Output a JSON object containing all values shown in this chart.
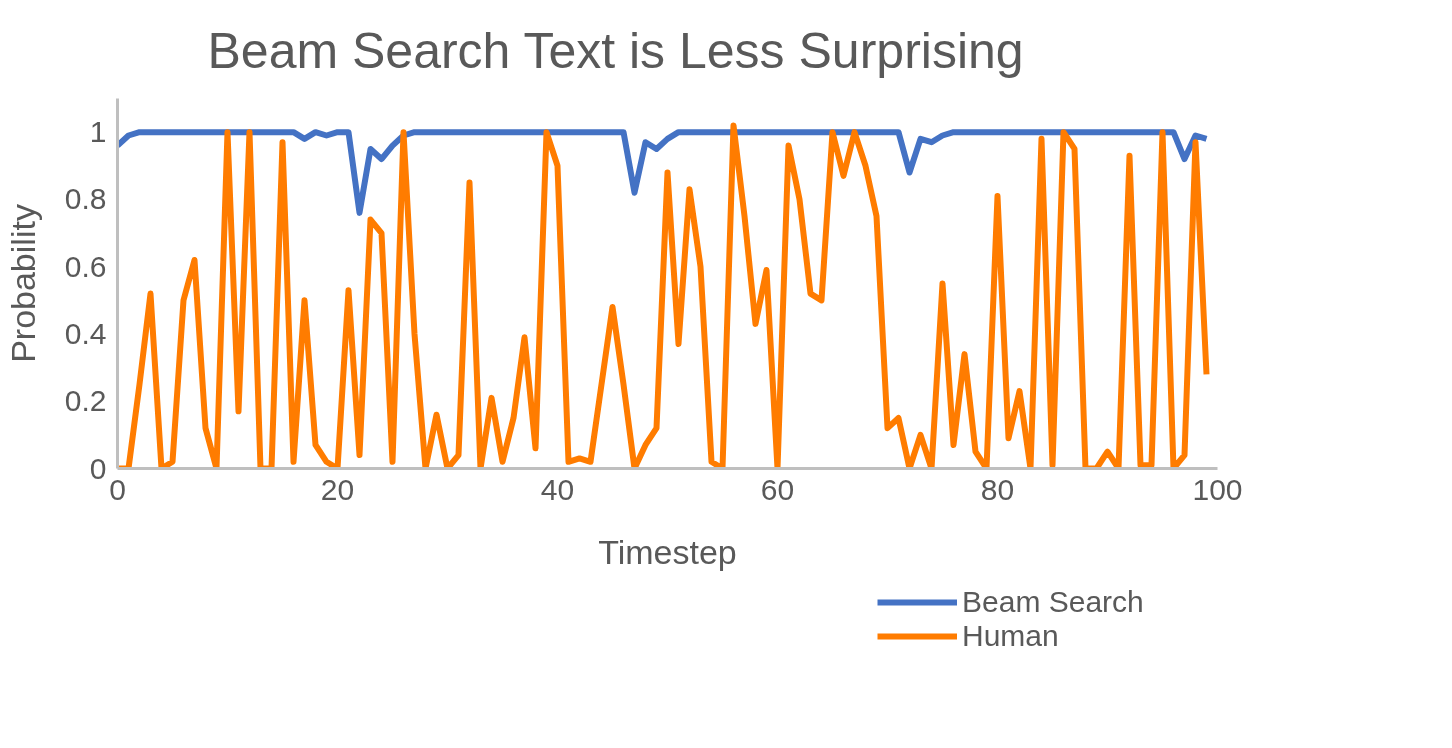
{
  "chart_data": {
    "type": "line",
    "title": "Beam Search Text is Less Surprising",
    "xlabel": "Timestep",
    "ylabel": "Probability",
    "x": [
      0,
      1,
      2,
      3,
      4,
      5,
      6,
      7,
      8,
      9,
      10,
      11,
      12,
      13,
      14,
      15,
      16,
      17,
      18,
      19,
      20,
      21,
      22,
      23,
      24,
      25,
      26,
      27,
      28,
      29,
      30,
      31,
      32,
      33,
      34,
      35,
      36,
      37,
      38,
      39,
      40,
      41,
      42,
      43,
      44,
      45,
      46,
      47,
      48,
      49,
      50,
      51,
      52,
      53,
      54,
      55,
      56,
      57,
      58,
      59,
      60,
      61,
      62,
      63,
      64,
      65,
      66,
      67,
      68,
      69,
      70,
      71,
      72,
      73,
      74,
      75,
      76,
      77,
      78,
      79,
      80,
      81,
      82,
      83,
      84,
      85,
      86,
      87,
      88,
      89,
      90,
      91,
      92,
      93,
      94,
      95,
      96,
      97,
      98,
      99
    ],
    "series": [
      {
        "name": "Beam Search",
        "color": "#4472c4",
        "values": [
          0.96,
          0.99,
          1,
          1,
          1,
          1,
          1,
          1,
          1,
          1,
          1,
          1,
          1,
          1,
          1,
          1,
          1,
          0.98,
          1,
          0.99,
          1,
          1,
          0.76,
          0.95,
          0.92,
          0.96,
          0.99,
          1,
          1,
          1,
          1,
          1,
          1,
          1,
          1,
          1,
          1,
          1,
          1,
          1,
          1,
          1,
          1,
          1,
          1,
          1,
          1,
          0.82,
          0.97,
          0.95,
          0.98,
          1,
          1,
          1,
          1,
          1,
          1,
          1,
          1,
          1,
          1,
          1,
          1,
          1,
          1,
          1,
          1,
          1,
          1,
          1,
          1,
          1,
          0.88,
          0.98,
          0.97,
          0.99,
          1,
          1,
          1,
          1,
          1,
          1,
          1,
          1,
          1,
          1,
          1,
          1,
          1,
          1,
          1,
          1,
          1,
          1,
          1,
          1,
          1,
          0.92,
          0.99,
          0.98
        ]
      },
      {
        "name": "Human",
        "color": "#ff7c00",
        "values": [
          0,
          0,
          0.25,
          0.52,
          0,
          0.02,
          0.5,
          0.62,
          0.12,
          0,
          1,
          0.17,
          1,
          0,
          0,
          0.97,
          0.02,
          0.5,
          0.07,
          0.02,
          0,
          0.53,
          0.04,
          0.74,
          0.7,
          0.02,
          1,
          0.4,
          0,
          0.16,
          0,
          0.04,
          0.85,
          0,
          0.21,
          0.02,
          0.15,
          0.39,
          0.06,
          1,
          0.9,
          0.02,
          0.03,
          0.02,
          0.25,
          0.48,
          0.25,
          0,
          0.07,
          0.12,
          0.88,
          0.37,
          0.83,
          0.6,
          0.02,
          0,
          1.02,
          0.75,
          0.43,
          0.59,
          0,
          0.96,
          0.8,
          0.52,
          0.5,
          1,
          0.87,
          1,
          0.9,
          0.75,
          0.12,
          0.15,
          0,
          0.1,
          0,
          0.55,
          0.07,
          0.34,
          0.05,
          0,
          0.81,
          0.09,
          0.23,
          0,
          0.98,
          0.01,
          1,
          0.95,
          0,
          0,
          0.05,
          0,
          0.93,
          0.01,
          0.01,
          1,
          0,
          0.04,
          0.97,
          0.28
        ]
      }
    ],
    "xlim": [
      0,
      100
    ],
    "ylim": [
      0,
      1.1
    ],
    "xticks": [
      0,
      20,
      40,
      60,
      80,
      100
    ],
    "yticks": [
      0,
      {
        "value": 0.2,
        "label": "0.2"
      },
      {
        "value": 0.4,
        "label": "0.4"
      },
      {
        "value": 0.6,
        "label": "0.6"
      },
      {
        "value": 0.8,
        "label": "0.8"
      },
      1
    ],
    "grid": false,
    "legend": "bottom right",
    "line_style": "solid"
  }
}
